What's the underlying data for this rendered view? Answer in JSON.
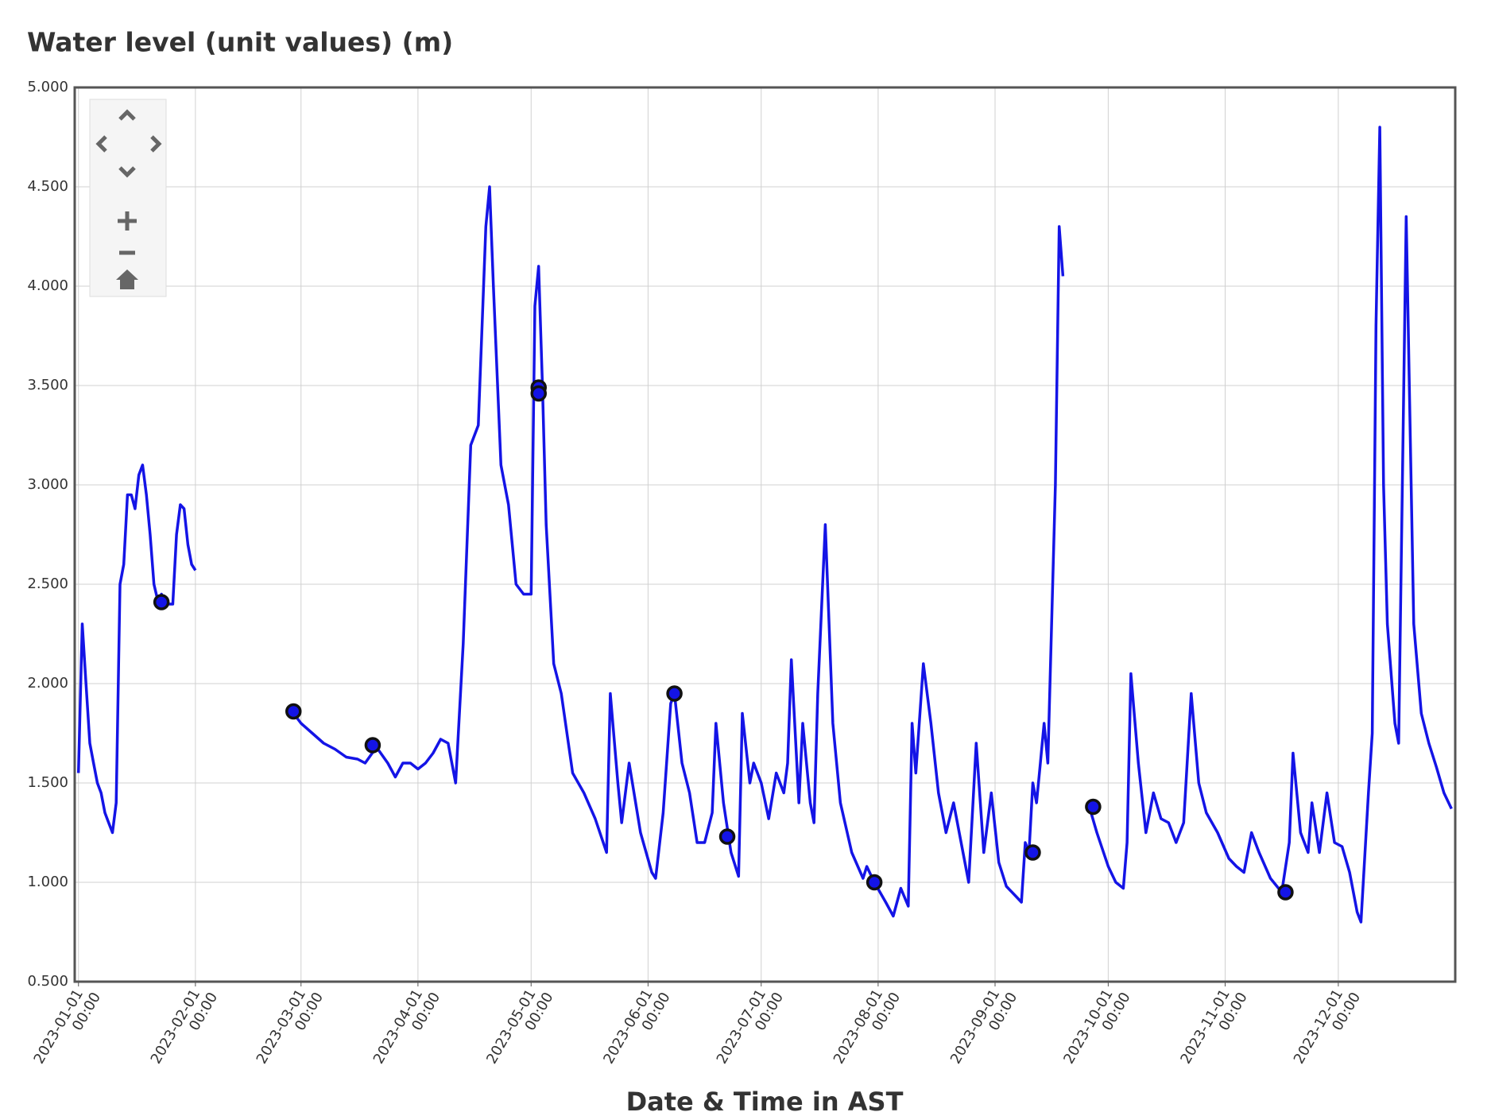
{
  "chart_data": {
    "type": "line",
    "title": "Water level (unit values) (m)",
    "xlabel": "Date & Time in AST",
    "grid": true,
    "xlim": [
      "2022-12-31",
      "2024-01-01"
    ],
    "ylim": [
      0.5,
      5.0
    ],
    "yticks": [
      {
        "value": 0.5,
        "label": "0.500"
      },
      {
        "value": 1.0,
        "label": "1.000"
      },
      {
        "value": 1.5,
        "label": "1.500"
      },
      {
        "value": 2.0,
        "label": "2.000"
      },
      {
        "value": 2.5,
        "label": "2.500"
      },
      {
        "value": 3.0,
        "label": "3.000"
      },
      {
        "value": 3.5,
        "label": "3.500"
      },
      {
        "value": 4.0,
        "label": "4.000"
      },
      {
        "value": 4.5,
        "label": "4.500"
      },
      {
        "value": 5.0,
        "label": "5.000"
      }
    ],
    "xticks": [
      {
        "value": "2023-01-01",
        "label": [
          "2023-01-01",
          "00:00"
        ]
      },
      {
        "value": "2023-02-01",
        "label": [
          "2023-02-01",
          "00:00"
        ]
      },
      {
        "value": "2023-03-01",
        "label": [
          "2023-03-01",
          "00:00"
        ]
      },
      {
        "value": "2023-04-01",
        "label": [
          "2023-04-01",
          "00:00"
        ]
      },
      {
        "value": "2023-05-01",
        "label": [
          "2023-05-01",
          "00:00"
        ]
      },
      {
        "value": "2023-06-01",
        "label": [
          "2023-06-01",
          "00:00"
        ]
      },
      {
        "value": "2023-07-01",
        "label": [
          "2023-07-01",
          "00:00"
        ]
      },
      {
        "value": "2023-08-01",
        "label": [
          "2023-08-01",
          "00:00"
        ]
      },
      {
        "value": "2023-09-01",
        "label": [
          "2023-09-01",
          "00:00"
        ]
      },
      {
        "value": "2023-10-01",
        "label": [
          "2023-10-01",
          "00:00"
        ]
      },
      {
        "value": "2023-11-01",
        "label": [
          "2023-11-01",
          "00:00"
        ]
      },
      {
        "value": "2023-12-01",
        "label": [
          "2023-12-01",
          "00:00"
        ]
      }
    ],
    "series": [
      {
        "type": "line",
        "color": "#1414e6",
        "x": [
          "2023-01-01",
          "2023-01-02",
          "2023-01-03",
          "2023-01-04",
          "2023-01-05",
          "2023-01-06",
          "2023-01-07",
          "2023-01-08",
          "2023-01-09",
          "2023-01-10",
          "2023-01-11",
          "2023-01-12",
          "2023-01-13",
          "2023-01-14",
          "2023-01-15",
          "2023-01-16",
          "2023-01-17",
          "2023-01-18",
          "2023-01-19",
          "2023-01-20",
          "2023-01-21",
          "2023-01-22",
          "2023-01-23",
          "2023-01-24",
          "2023-01-25",
          "2023-01-26",
          "2023-01-27",
          "2023-01-28",
          "2023-01-29",
          "2023-01-30",
          "2023-01-31",
          "2023-02-01",
          "2023-02-14",
          "2023-02-27",
          "2023-03-01",
          "2023-03-04",
          "2023-03-07",
          "2023-03-10",
          "2023-03-13",
          "2023-03-16",
          "2023-03-18",
          "2023-03-21",
          "2023-03-24",
          "2023-03-26",
          "2023-03-28",
          "2023-03-30",
          "2023-04-01",
          "2023-04-03",
          "2023-04-05",
          "2023-04-07",
          "2023-04-09",
          "2023-04-11",
          "2023-04-13",
          "2023-04-15",
          "2023-04-17",
          "2023-04-19",
          "2023-04-20",
          "2023-04-21",
          "2023-04-23",
          "2023-04-25",
          "2023-04-27",
          "2023-04-29",
          "2023-05-01",
          "2023-05-02",
          "2023-05-03",
          "2023-05-04",
          "2023-05-05",
          "2023-05-07",
          "2023-05-09",
          "2023-05-12",
          "2023-05-15",
          "2023-05-18",
          "2023-05-21",
          "2023-05-22",
          "2023-05-24",
          "2023-05-25",
          "2023-05-27",
          "2023-05-30",
          "2023-06-02",
          "2023-06-03",
          "2023-06-05",
          "2023-06-07",
          "2023-06-08",
          "2023-06-10",
          "2023-06-12",
          "2023-06-14",
          "2023-06-16",
          "2023-06-18",
          "2023-06-19",
          "2023-06-21",
          "2023-06-23",
          "2023-06-25",
          "2023-06-26",
          "2023-06-28",
          "2023-06-29",
          "2023-07-01",
          "2023-07-03",
          "2023-07-05",
          "2023-07-07",
          "2023-07-08",
          "2023-07-09",
          "2023-07-11",
          "2023-07-12",
          "2023-07-14",
          "2023-07-15",
          "2023-07-16",
          "2023-07-18",
          "2023-07-20",
          "2023-07-22",
          "2023-07-25",
          "2023-07-28",
          "2023-07-29",
          "2023-07-31",
          "2023-08-03",
          "2023-08-05",
          "2023-08-07",
          "2023-08-09",
          "2023-08-10",
          "2023-08-11",
          "2023-08-13",
          "2023-08-15",
          "2023-08-17",
          "2023-08-19",
          "2023-08-21",
          "2023-08-23",
          "2023-08-25",
          "2023-08-27",
          "2023-08-29",
          "2023-08-31",
          "2023-09-02",
          "2023-09-04",
          "2023-09-07",
          "2023-09-08",
          "2023-09-09",
          "2023-09-10",
          "2023-09-11",
          "2023-09-12",
          "2023-09-13",
          "2023-09-14",
          "2023-09-15",
          "2023-09-17",
          "2023-09-18",
          "2023-09-19",
          "2023-09-22",
          "2023-09-26",
          "2023-09-28",
          "2023-10-01",
          "2023-10-03",
          "2023-10-05",
          "2023-10-06",
          "2023-10-07",
          "2023-10-09",
          "2023-10-11",
          "2023-10-13",
          "2023-10-15",
          "2023-10-17",
          "2023-10-19",
          "2023-10-21",
          "2023-10-23",
          "2023-10-25",
          "2023-10-27",
          "2023-10-30",
          "2023-11-02",
          "2023-11-04",
          "2023-11-06",
          "2023-11-08",
          "2023-11-10",
          "2023-11-13",
          "2023-11-16",
          "2023-11-18",
          "2023-11-19",
          "2023-11-21",
          "2023-11-23",
          "2023-11-24",
          "2023-11-26",
          "2023-11-28",
          "2023-11-30",
          "2023-12-02",
          "2023-12-04",
          "2023-12-06",
          "2023-12-07",
          "2023-12-09",
          "2023-12-10",
          "2023-12-11",
          "2023-12-12",
          "2023-12-13",
          "2023-12-14",
          "2023-12-16",
          "2023-12-17",
          "2023-12-19",
          "2023-12-21",
          "2023-12-23",
          "2023-12-25",
          "2023-12-27",
          "2023-12-29",
          "2023-12-31"
        ],
        "values": [
          1.55,
          2.3,
          2.0,
          1.7,
          1.6,
          1.5,
          1.45,
          1.35,
          1.3,
          1.25,
          1.4,
          2.5,
          2.6,
          2.95,
          2.95,
          2.88,
          3.05,
          3.1,
          2.95,
          2.75,
          2.5,
          2.42,
          2.45,
          2.42,
          2.4,
          2.4,
          2.75,
          2.9,
          2.88,
          2.7,
          2.6,
          2.57,
          null,
          1.85,
          1.8,
          1.75,
          1.7,
          1.67,
          1.63,
          1.62,
          1.6,
          1.68,
          1.6,
          1.53,
          1.6,
          1.6,
          1.57,
          1.6,
          1.65,
          1.72,
          1.7,
          1.5,
          2.2,
          3.2,
          3.3,
          4.3,
          4.5,
          4.0,
          3.1,
          2.9,
          2.5,
          2.45,
          2.45,
          3.9,
          4.1,
          3.5,
          2.8,
          2.1,
          1.95,
          1.55,
          1.45,
          1.32,
          1.15,
          1.95,
          1.5,
          1.3,
          1.6,
          1.25,
          1.05,
          1.02,
          1.35,
          1.9,
          1.95,
          1.6,
          1.45,
          1.2,
          1.2,
          1.35,
          1.8,
          1.4,
          1.15,
          1.03,
          1.85,
          1.5,
          1.6,
          1.5,
          1.32,
          1.55,
          1.45,
          1.6,
          2.12,
          1.4,
          1.8,
          1.4,
          1.3,
          1.95,
          2.8,
          1.8,
          1.4,
          1.15,
          1.02,
          1.08,
          1.0,
          0.9,
          0.83,
          0.97,
          0.88,
          1.8,
          1.55,
          2.1,
          1.8,
          1.45,
          1.25,
          1.4,
          1.2,
          1.0,
          1.7,
          1.15,
          1.45,
          1.1,
          0.98,
          0.92,
          0.9,
          1.2,
          1.15,
          1.5,
          1.4,
          1.6,
          1.8,
          1.6,
          3.0,
          4.3,
          4.05,
          null,
          1.38,
          1.25,
          1.08,
          1.0,
          0.97,
          1.2,
          2.05,
          1.6,
          1.25,
          1.45,
          1.32,
          1.3,
          1.2,
          1.3,
          1.95,
          1.5,
          1.35,
          1.25,
          1.12,
          1.08,
          1.05,
          1.25,
          1.15,
          1.02,
          0.95,
          1.2,
          1.65,
          1.25,
          1.15,
          1.4,
          1.15,
          1.45,
          1.2,
          1.18,
          1.05,
          0.85,
          0.8,
          1.45,
          1.75,
          3.8,
          4.8,
          3.0,
          2.3,
          1.8,
          1.7,
          4.35,
          2.3,
          1.85,
          1.7,
          1.58,
          1.45,
          1.37
        ]
      },
      {
        "type": "scatter",
        "color": "#1414e6",
        "x": [
          "2023-01-23",
          "2023-02-27",
          "2023-03-20",
          "2023-05-03",
          "2023-05-03",
          "2023-06-08",
          "2023-06-22",
          "2023-07-31",
          "2023-09-11",
          "2023-09-27",
          "2023-11-17"
        ],
        "values": [
          2.41,
          1.86,
          1.69,
          3.49,
          3.46,
          1.95,
          1.23,
          1.0,
          1.15,
          1.38,
          0.95
        ]
      }
    ]
  }
}
